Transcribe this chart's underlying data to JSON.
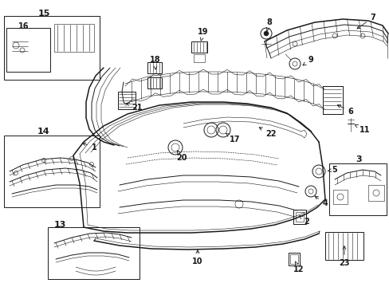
{
  "bg_color": "#ffffff",
  "line_color": "#1a1a1a",
  "figsize": [
    4.89,
    3.6
  ],
  "dpi": 100,
  "lw_thin": 0.4,
  "lw_med": 0.7,
  "lw_thick": 1.1
}
